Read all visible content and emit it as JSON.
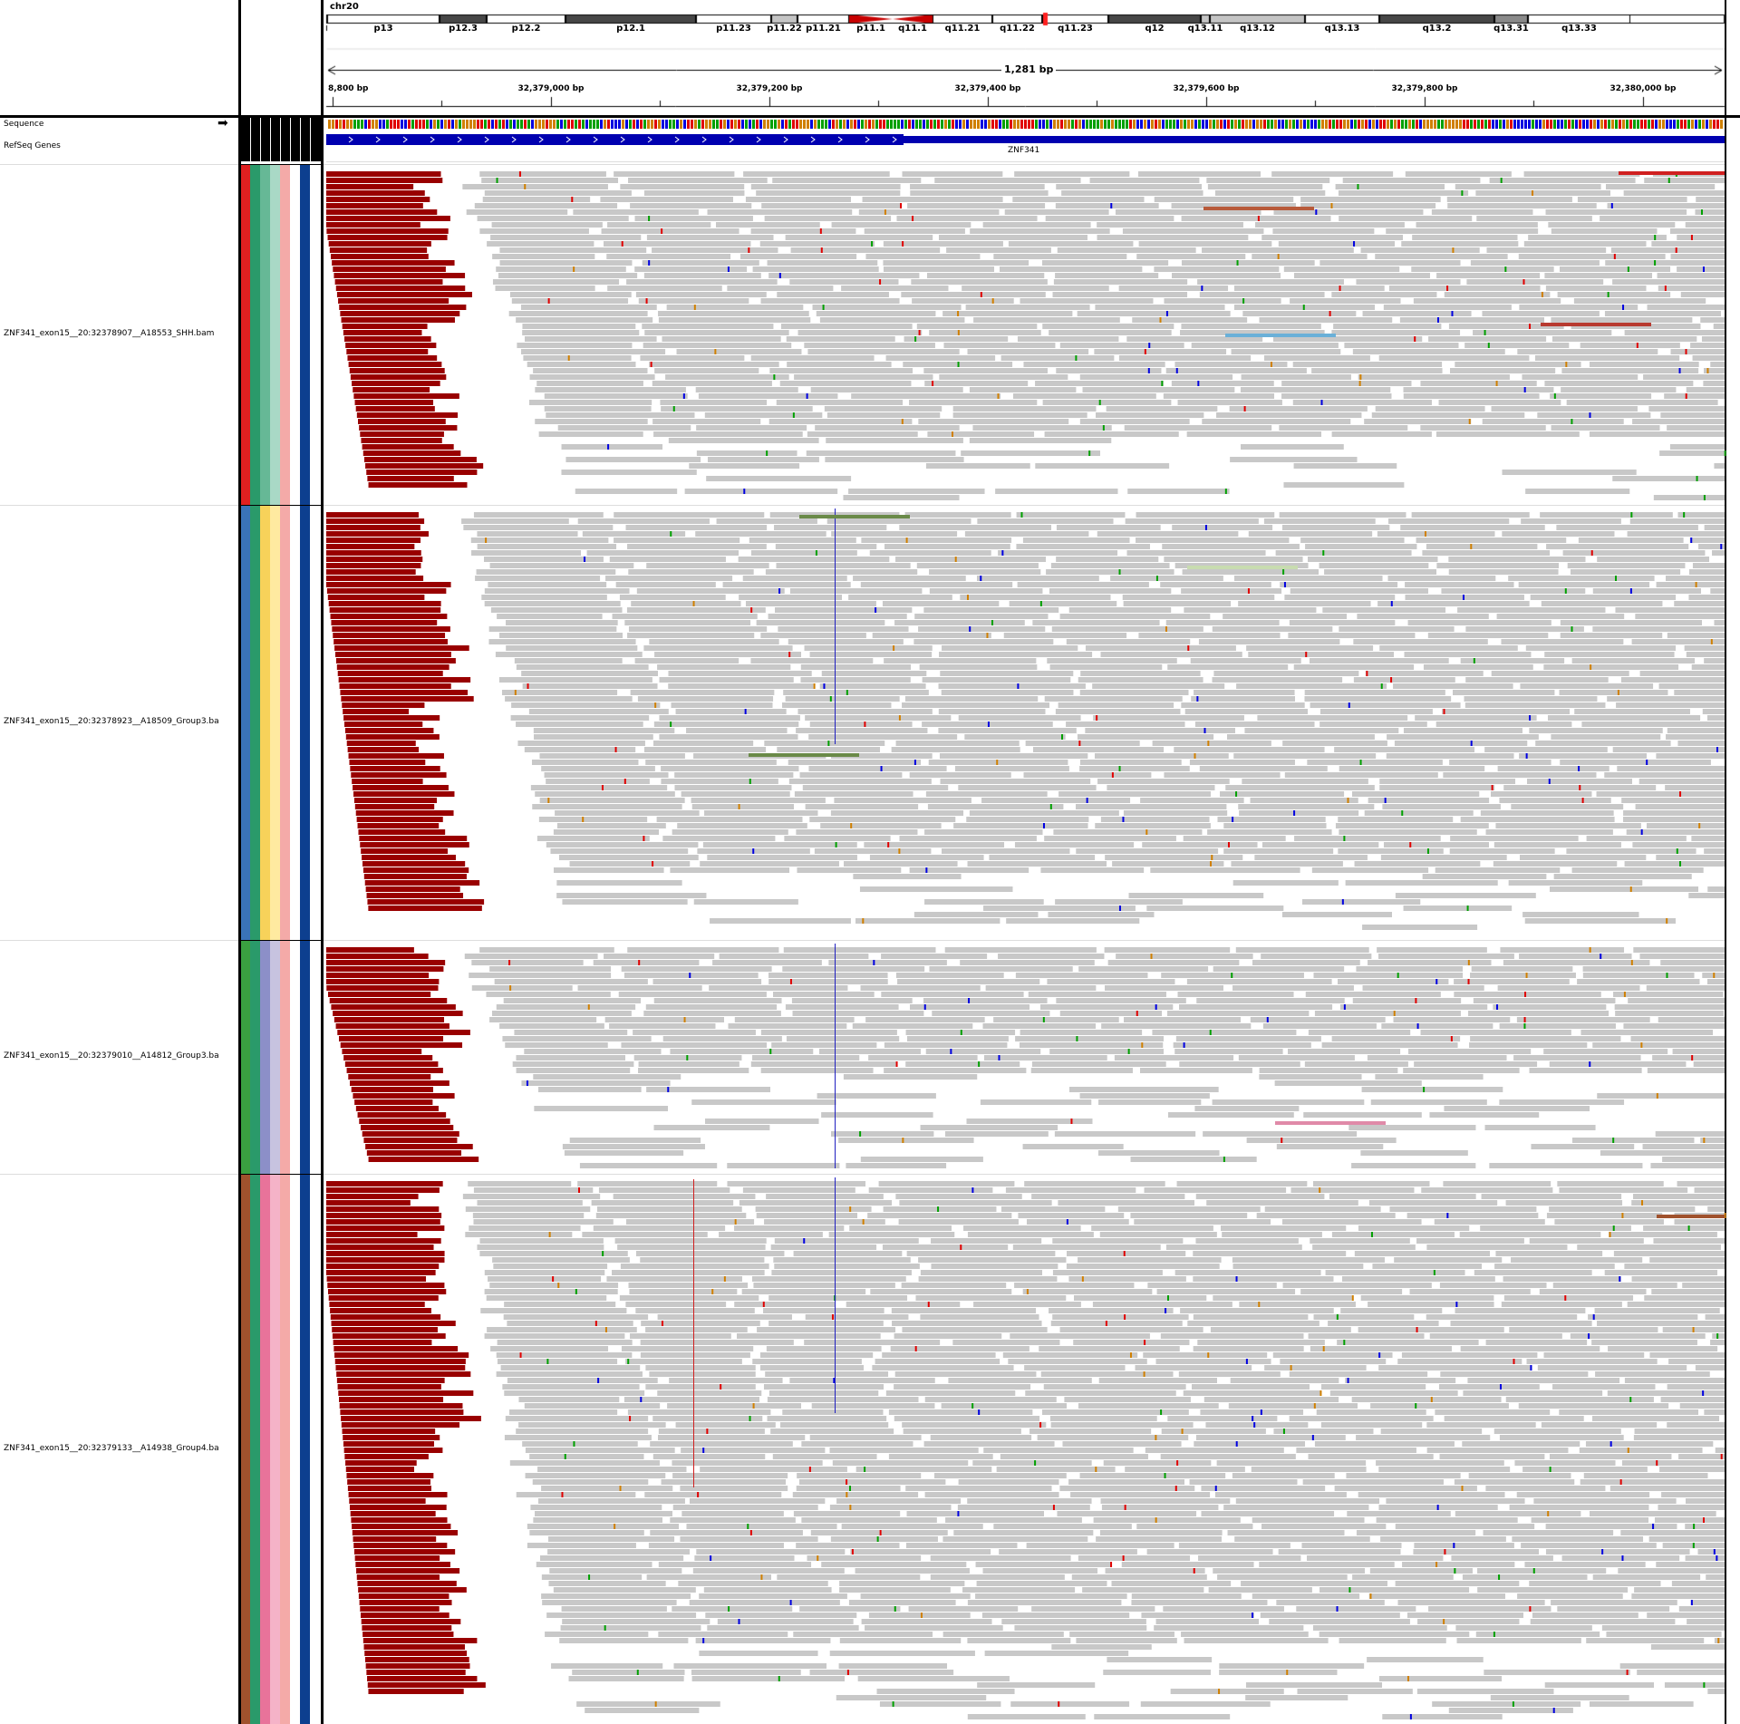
{
  "header": {
    "chrom": "chr20",
    "span_label": "1,281 bp",
    "gene_name": "ZNF341"
  },
  "ideogram": {
    "bands": [
      {
        "name": "p13",
        "stain": "white"
      },
      {
        "name": "p12.3",
        "stain": "dark"
      },
      {
        "name": "p12.2",
        "stain": "white"
      },
      {
        "name": "p12.1",
        "stain": "dark"
      },
      {
        "name": "p11.23",
        "stain": "white"
      },
      {
        "name": "p11.22",
        "stain": "light"
      },
      {
        "name": "p11.21",
        "stain": "white"
      },
      {
        "name": "p11.1",
        "stain": "centromere"
      },
      {
        "name": "q11.1",
        "stain": "centromere"
      },
      {
        "name": "q11.21",
        "stain": "white"
      },
      {
        "name": "q11.22",
        "stain": "white"
      },
      {
        "name": "q11.23",
        "stain": "white"
      },
      {
        "name": "q12",
        "stain": "dark"
      },
      {
        "name": "q13.11",
        "stain": "light"
      },
      {
        "name": "q13.12",
        "stain": "light"
      },
      {
        "name": "q13.13",
        "stain": "white"
      },
      {
        "name": "q13.2",
        "stain": "dark"
      },
      {
        "name": "q13.31",
        "stain": "mid"
      },
      {
        "name": "q13.33",
        "stain": "white"
      }
    ]
  },
  "ruler": {
    "ticks": [
      "8,800 bp",
      "32,379,000 bp",
      "32,379,200 bp",
      "32,379,400 bp",
      "32,379,600 bp",
      "32,379,800 bp",
      "32,380,000 bp"
    ]
  },
  "tracks": {
    "sequence_label": "Sequence",
    "genes_label": "RefSeq Genes"
  },
  "samples": [
    {
      "name": "ZNF341_exon15__20:32378907__A18553_SHH.bam",
      "colors": [
        "#e02020",
        "#2a9a6a",
        "#66b896",
        "#a9d9c6",
        "#f4aaa8",
        "#ffffff",
        "#0d3f8f"
      ]
    },
    {
      "name": "ZNF341_exon15__20:32378923__A18509_Group3.ba",
      "colors": [
        "#3a73b8",
        "#2a9a6a",
        "#f7d25a",
        "#ffeaa0",
        "#f4aaa8",
        "#ffffff",
        "#0d3f8f"
      ]
    },
    {
      "name": "ZNF341_exon15__20:32379010__A14812_Group3.ba",
      "colors": [
        "#3aa040",
        "#2a9a6a",
        "#8c8fc8",
        "#c7c3e0",
        "#f4aaa8",
        "#ffffff",
        "#0d3f8f"
      ]
    },
    {
      "name": "ZNF341_exon15__20:32379133__A14938_Group4.ba",
      "colors": [
        "#a0522d",
        "#2a9a6a",
        "#e8739a",
        "#f5b3c8",
        "#f4aaa8",
        "#ffffff",
        "#0d3f8f"
      ]
    }
  ],
  "colors": {
    "read": "#c8c8c8",
    "softclip": "#990000",
    "gene": "#0000b0",
    "centromere": "#c80000"
  }
}
